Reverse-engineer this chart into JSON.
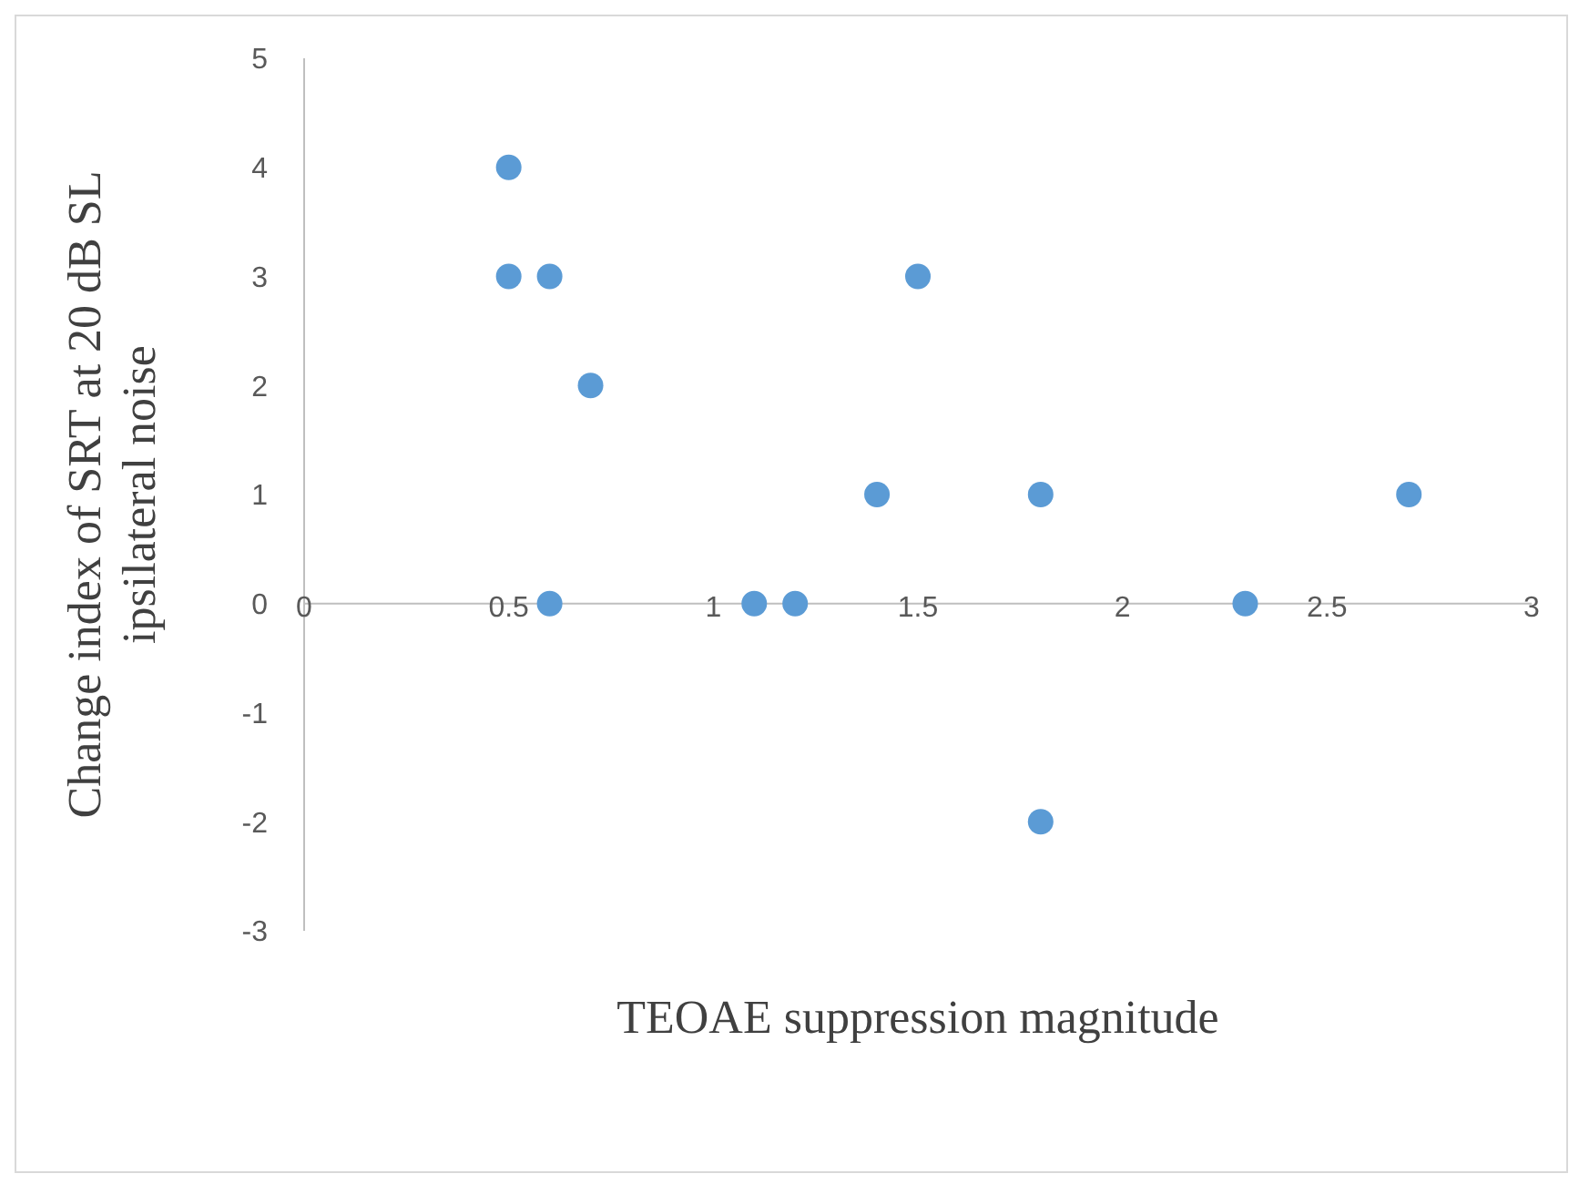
{
  "chart_data": {
    "type": "scatter",
    "xlabel": "TEOAE suppression magnitude",
    "ylabel": "Change index of SRT at 20 dB SL ipsilateral noise",
    "x": [
      0.5,
      0.5,
      0.6,
      0.7,
      1.5,
      1.4,
      1.8,
      2.7,
      0.6,
      1.1,
      1.2,
      2.3,
      1.8
    ],
    "values": [
      4,
      3,
      3,
      2,
      3,
      1,
      1,
      1,
      0,
      0,
      0,
      0,
      -2
    ],
    "color": "#5b9bd5",
    "marker": "circle",
    "grid": false,
    "xlim": [
      0,
      3
    ],
    "xticks": [
      0,
      0.5,
      1,
      1.5,
      2,
      2.5,
      3
    ],
    "ylim": [
      -3,
      5
    ],
    "yticks": [
      -3,
      -2,
      -1,
      0,
      1,
      2,
      3,
      4,
      5
    ]
  }
}
